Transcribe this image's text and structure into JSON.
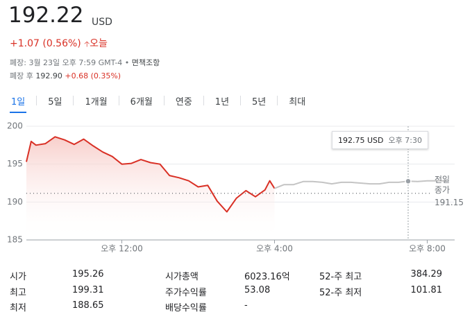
{
  "header": {
    "price": "192.22",
    "currency": "USD",
    "change": "+1.07 (0.56%)",
    "period": "오늘",
    "status": "폐장: 3월 23일 오후 7:59 GMT-4 •",
    "disclaimer": "면책조항",
    "after_hours_label": "폐장 후",
    "after_hours_price": "192.90",
    "after_hours_change": "+0.68 (0.35%)"
  },
  "tabs": [
    "1일",
    "5일",
    "1개월",
    "6개월",
    "연중",
    "1년",
    "5년",
    "최대"
  ],
  "active_tab": 0,
  "chart_data": {
    "type": "line",
    "xlim": [
      9.5,
      20.5
    ],
    "ylim": [
      185,
      200
    ],
    "xticks": [
      {
        "value": 12,
        "label": "오후 12:00"
      },
      {
        "value": 16,
        "label": "오후 4:00"
      },
      {
        "value": 20,
        "label": "오후 8:00"
      }
    ],
    "yticks": [
      185,
      190,
      195,
      200
    ],
    "grid": true,
    "series": [
      {
        "color": "#d93025",
        "area": true,
        "x": [
          9.5,
          9.625,
          9.75,
          10,
          10.25,
          10.5,
          10.75,
          11,
          11.25,
          11.5,
          11.75,
          12,
          12.25,
          12.5,
          12.75,
          13,
          13.25,
          13.5,
          13.75,
          14,
          14.25,
          14.5,
          14.75,
          15,
          15.25,
          15.5,
          15.75,
          15.875,
          16
        ],
        "values": [
          195.3,
          198,
          197.5,
          197.7,
          198.6,
          198.2,
          197.6,
          198.3,
          197.4,
          196.6,
          196,
          195,
          195.1,
          195.6,
          195.2,
          195,
          193.5,
          193.2,
          192.8,
          192,
          192.2,
          190.1,
          188.7,
          190.5,
          191.5,
          190.7,
          191.6,
          192.8,
          191.8
        ]
      },
      {
        "color": "#c4c4c4",
        "area": false,
        "x": [
          16,
          16.25,
          16.5,
          16.75,
          17,
          17.25,
          17.5,
          17.75,
          18,
          18.25,
          18.5,
          18.75,
          19,
          19.25,
          19.5,
          19.75,
          20,
          20.25,
          20.5
        ],
        "values": [
          191.8,
          192.3,
          192.3,
          192.7,
          192.7,
          192.6,
          192.4,
          192.6,
          192.6,
          192.5,
          192.4,
          192.4,
          192.6,
          192.6,
          192.75,
          192.7,
          192.8,
          192.8,
          192.8
        ]
      }
    ],
    "previous_close": {
      "label": "전일 종가",
      "value": 191.15
    },
    "tooltip": {
      "value": 192.75,
      "currency": "USD",
      "time": "오후 7:30",
      "x": 19.5
    }
  },
  "stats": [
    [
      [
        "시가",
        "195.26"
      ],
      [
        "최고",
        "199.31"
      ],
      [
        "최저",
        "188.65"
      ]
    ],
    [
      [
        "시가총액",
        "6023.16억"
      ],
      [
        "주가수익률",
        "53.08"
      ],
      [
        "배당수익률",
        "-"
      ]
    ],
    [
      [
        "52-주 최고",
        "384.29"
      ],
      [
        "52-주 최저",
        "101.81"
      ]
    ]
  ]
}
